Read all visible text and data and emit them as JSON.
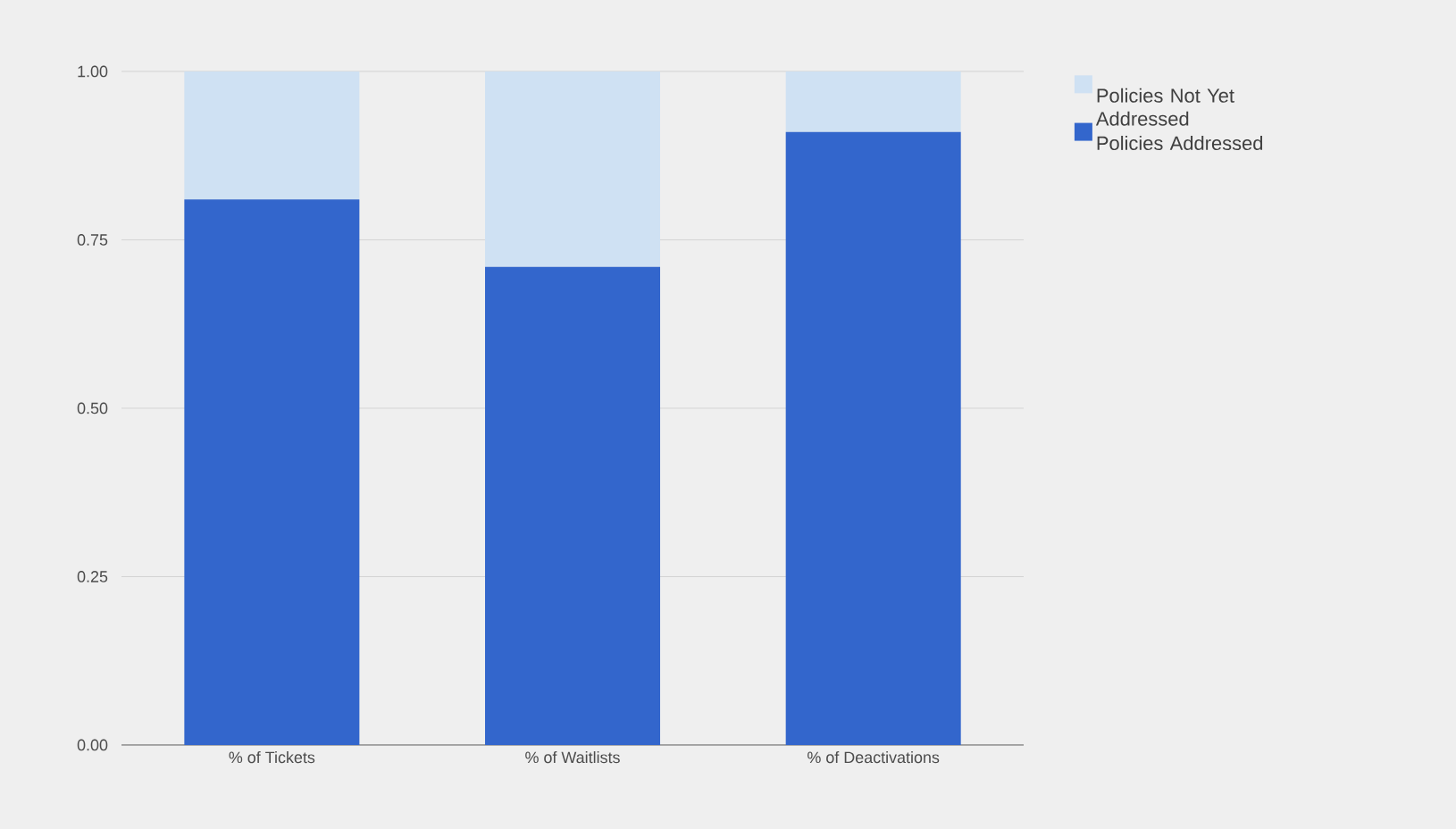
{
  "chart_data": {
    "type": "bar",
    "stacked": true,
    "categories": [
      "% of Tickets",
      "% of Waitlists",
      "% of Deactivations"
    ],
    "series": [
      {
        "name": "Policies Addressed",
        "color": "#3366cc",
        "values": [
          0.81,
          0.71,
          0.91
        ]
      },
      {
        "name": "Policies Not Yet Addressed",
        "color": "#cfe1f3",
        "values": [
          0.19,
          0.29,
          0.09
        ]
      }
    ],
    "ylim": [
      0,
      1
    ],
    "yticks": [
      {
        "value": 0,
        "label": "0.00"
      },
      {
        "value": 0.25,
        "label": "0.25"
      },
      {
        "value": 0.5,
        "label": "0.50"
      },
      {
        "value": 0.75,
        "label": "0.75"
      },
      {
        "value": 1,
        "label": "1.00"
      }
    ],
    "grid": "y",
    "legend": "right"
  }
}
